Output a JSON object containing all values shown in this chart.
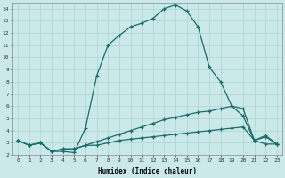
{
  "xlabel": "Humidex (Indice chaleur)",
  "xlim": [
    -0.5,
    23.5
  ],
  "ylim": [
    2,
    14.5
  ],
  "yticks": [
    2,
    3,
    4,
    5,
    6,
    7,
    8,
    9,
    10,
    11,
    12,
    13,
    14
  ],
  "xticks": [
    0,
    1,
    2,
    3,
    4,
    5,
    6,
    7,
    8,
    9,
    10,
    11,
    12,
    13,
    14,
    15,
    16,
    17,
    18,
    19,
    20,
    21,
    22,
    23
  ],
  "bg_color": "#cce9e9",
  "line_color": "#1a6b6b",
  "grid_color": "#b0d8d8",
  "line1_x": [
    0,
    1,
    2,
    3,
    4,
    5,
    6,
    7,
    8,
    9,
    10,
    11,
    12,
    13,
    14,
    15,
    16,
    17,
    18,
    19,
    20,
    21,
    22,
    23
  ],
  "line1_y": [
    3.2,
    2.8,
    3.0,
    2.3,
    2.3,
    2.2,
    4.2,
    8.5,
    11.0,
    11.8,
    12.5,
    12.8,
    13.2,
    14.0,
    14.3,
    13.8,
    12.5,
    9.2,
    8.0,
    6.0,
    5.2,
    3.2,
    3.6,
    2.9
  ],
  "line2_x": [
    0,
    1,
    2,
    3,
    4,
    5,
    6,
    7,
    8,
    9,
    10,
    11,
    12,
    13,
    14,
    15,
    16,
    17,
    18,
    19,
    20,
    21,
    22,
    23
  ],
  "line2_y": [
    3.2,
    2.8,
    3.0,
    2.3,
    2.5,
    2.5,
    2.8,
    3.1,
    3.4,
    3.7,
    4.0,
    4.3,
    4.6,
    4.9,
    5.1,
    5.3,
    5.5,
    5.6,
    5.8,
    6.0,
    5.8,
    3.2,
    3.5,
    2.9
  ],
  "line3_x": [
    0,
    1,
    2,
    3,
    4,
    5,
    6,
    7,
    8,
    9,
    10,
    11,
    12,
    13,
    14,
    15,
    16,
    17,
    18,
    19,
    20,
    21,
    22,
    23
  ],
  "line3_y": [
    3.2,
    2.8,
    3.0,
    2.3,
    2.5,
    2.5,
    2.8,
    2.8,
    3.0,
    3.2,
    3.3,
    3.4,
    3.5,
    3.6,
    3.7,
    3.8,
    3.9,
    4.0,
    4.1,
    4.2,
    4.3,
    3.2,
    2.9,
    2.9
  ]
}
